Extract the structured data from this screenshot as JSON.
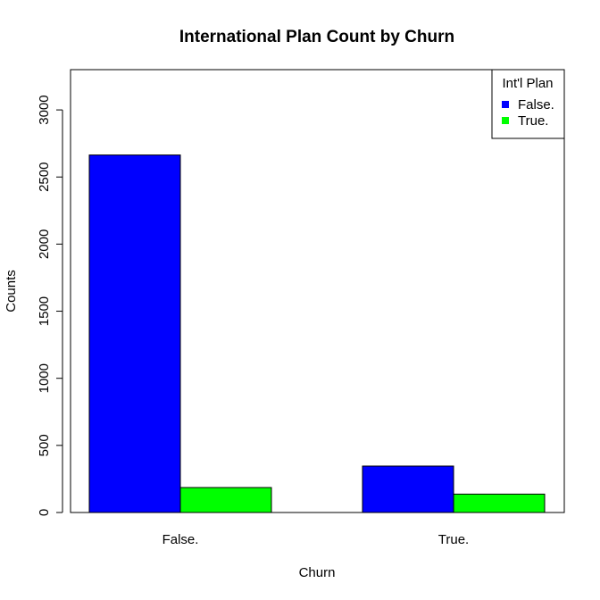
{
  "chart_data": {
    "type": "bar",
    "title": "International Plan Count by Churn",
    "xlabel": "Churn",
    "ylabel": "Counts",
    "categories": [
      "False.",
      "True."
    ],
    "series": [
      {
        "name": "False.",
        "color": "#0000FF",
        "values": [
          2664,
          346
        ]
      },
      {
        "name": "True.",
        "color": "#00FF00",
        "values": [
          186,
          137
        ]
      }
    ],
    "ylim": [
      0,
      3300
    ],
    "yticks": [
      "0",
      "500",
      "1000",
      "1500",
      "2000",
      "2500",
      "3000"
    ],
    "legend": {
      "title": "Int'l Plan",
      "position": "top-right"
    },
    "grid": false
  }
}
